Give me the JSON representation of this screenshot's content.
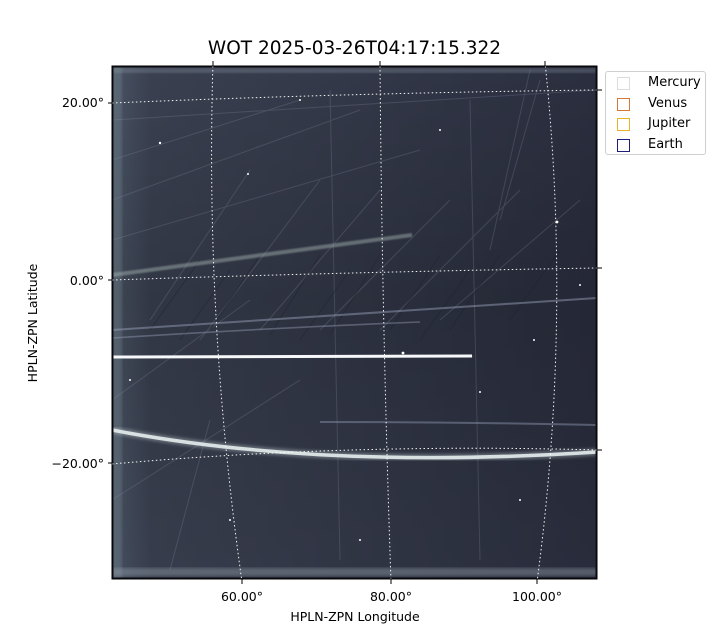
{
  "title": "WOT 2025-03-26T04:17:15.322",
  "xlabel": "HPLN-ZPN Longitude",
  "ylabel": "HPLN-ZPN Latitude",
  "x_ticks": [
    "60.00°",
    "80.00°",
    "100.00°"
  ],
  "y_ticks": [
    "20.00°",
    "0.00°",
    "−20.00°"
  ],
  "legend": {
    "placement": "upper-right-outside",
    "items": [
      {
        "label": "Mercury",
        "color": "#dcdcdc"
      },
      {
        "label": "Venus",
        "color": "#d2783c"
      },
      {
        "label": "Jupiter",
        "color": "#e6b428"
      },
      {
        "label": "Earth",
        "color": "#1e1e78"
      }
    ]
  },
  "image": {
    "colormap": "bone-like dark blue-gray",
    "grid": "white dotted coordinate grid"
  }
}
